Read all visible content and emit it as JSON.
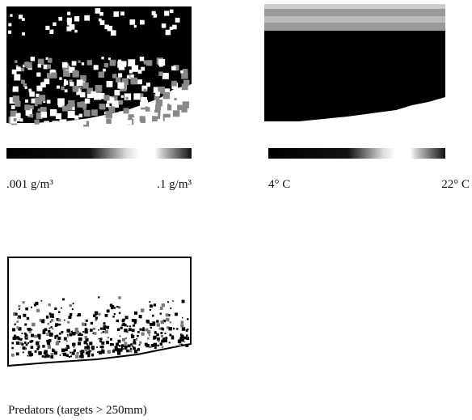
{
  "panels": [
    {
      "label_min": ".001 g/m³",
      "label_max": ".1 g/m³"
    },
    {
      "label_min": "4° C",
      "label_max": "22° C"
    }
  ],
  "caption": "Predators (targets > 250mm)"
}
